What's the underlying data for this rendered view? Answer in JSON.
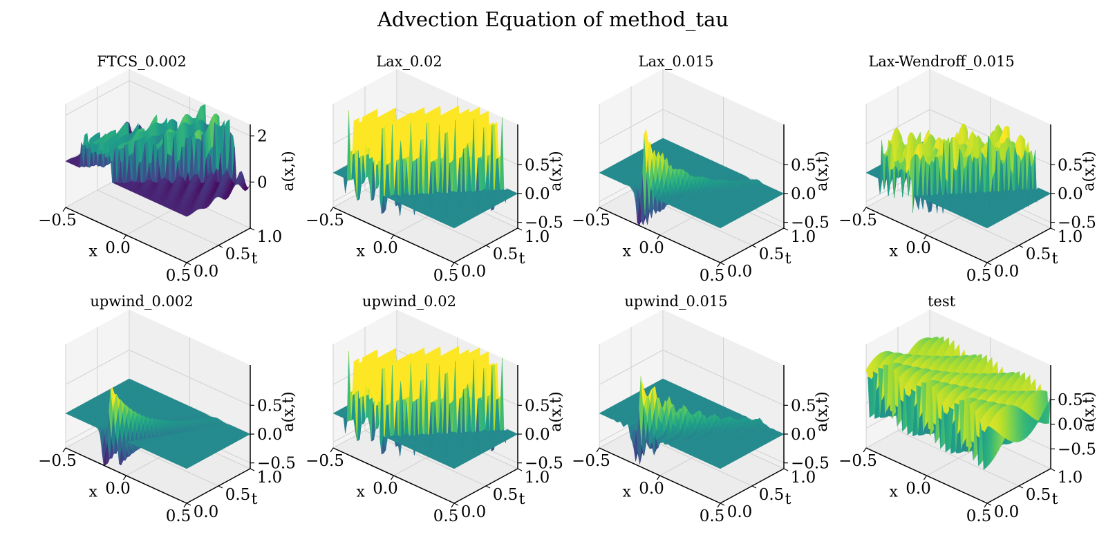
{
  "figure": {
    "title": "Advection Equation of method_tau"
  },
  "chart_data": [
    {
      "type": "surface3d",
      "title": "FTCS_0.002",
      "xlabel": "x",
      "ylabel": "t",
      "zlabel": "a(x,t)",
      "xlim": [
        -0.5,
        0.5
      ],
      "ylim": [
        0.0,
        1.0
      ],
      "zlim": [
        -2.0,
        2.5
      ],
      "x_ticks": [
        "−0.5",
        "0.0",
        "0.5"
      ],
      "y_ticks": [
        "0.0",
        "0.5",
        "1.0"
      ],
      "z_ticks": [
        {
          "v": 0,
          "label": "0"
        },
        {
          "v": 2,
          "label": "2"
        }
      ],
      "pattern": "ftcs",
      "colormap": "viridis"
    },
    {
      "type": "surface3d",
      "title": "Lax_0.02",
      "xlabel": "x",
      "ylabel": "t",
      "zlabel": "a(x,t)",
      "xlim": [
        -0.5,
        0.5
      ],
      "ylim": [
        0.0,
        1.0
      ],
      "zlim": [
        -0.6,
        1.2
      ],
      "x_ticks": [
        "−0.5",
        "0.0",
        "0.5"
      ],
      "y_ticks": [
        "0.0",
        "0.5",
        "1.0"
      ],
      "z_ticks": [
        {
          "v": -0.5,
          "label": "−0.5"
        },
        {
          "v": 0.0,
          "label": "0.0"
        },
        {
          "v": 0.5,
          "label": "0.5"
        }
      ],
      "pattern": "square",
      "colormap": "viridis"
    },
    {
      "type": "surface3d",
      "title": "Lax_0.015",
      "xlabel": "x",
      "ylabel": "t",
      "zlabel": "a(x,t)",
      "xlim": [
        -0.5,
        0.5
      ],
      "ylim": [
        0.0,
        1.0
      ],
      "zlim": [
        -0.6,
        1.2
      ],
      "x_ticks": [
        "−0.5",
        "0.0",
        "0.5"
      ],
      "y_ticks": [
        "0.0",
        "0.5",
        "1.0"
      ],
      "z_ticks": [
        {
          "v": -0.5,
          "label": "−0.5"
        },
        {
          "v": 0.0,
          "label": "0.0"
        },
        {
          "v": 0.5,
          "label": "0.5"
        }
      ],
      "pattern": "spike",
      "colormap": "viridis"
    },
    {
      "type": "surface3d",
      "title": "Lax-Wendroff_0.015",
      "xlabel": "x",
      "ylabel": "t",
      "zlabel": "a(x,t)",
      "xlim": [
        -0.5,
        0.5
      ],
      "ylim": [
        0.0,
        1.0
      ],
      "zlim": [
        -0.6,
        1.2
      ],
      "x_ticks": [
        "−0.5",
        "0.0",
        "0.5"
      ],
      "y_ticks": [
        "0.0",
        "0.5",
        "1.0"
      ],
      "z_ticks": [
        {
          "v": -0.5,
          "label": "−0.5"
        },
        {
          "v": 0.0,
          "label": "0.0"
        },
        {
          "v": 0.5,
          "label": "0.5"
        }
      ],
      "pattern": "squareNoisy",
      "colormap": "viridis"
    },
    {
      "type": "surface3d",
      "title": "upwind_0.002",
      "xlabel": "x",
      "ylabel": "t",
      "zlabel": "a(x,t)",
      "xlim": [
        -0.5,
        0.5
      ],
      "ylim": [
        0.0,
        1.0
      ],
      "zlim": [
        -0.6,
        1.2
      ],
      "x_ticks": [
        "−0.5",
        "0.0",
        "0.5"
      ],
      "y_ticks": [
        "0.0",
        "0.5",
        "1.0"
      ],
      "z_ticks": [
        {
          "v": -0.5,
          "label": "−0.5"
        },
        {
          "v": 0.0,
          "label": "0.0"
        },
        {
          "v": 0.5,
          "label": "0.5"
        }
      ],
      "pattern": "spikeSmall",
      "colormap": "viridis"
    },
    {
      "type": "surface3d",
      "title": "upwind_0.02",
      "xlabel": "x",
      "ylabel": "t",
      "zlabel": "a(x,t)",
      "xlim": [
        -0.5,
        0.5
      ],
      "ylim": [
        0.0,
        1.0
      ],
      "zlim": [
        -0.6,
        1.2
      ],
      "x_ticks": [
        "−0.5",
        "0.0",
        "0.5"
      ],
      "y_ticks": [
        "0.0",
        "0.5",
        "1.0"
      ],
      "z_ticks": [
        {
          "v": -0.5,
          "label": "−0.5"
        },
        {
          "v": 0.0,
          "label": "0.0"
        },
        {
          "v": 0.5,
          "label": "0.5"
        }
      ],
      "pattern": "square",
      "colormap": "viridis"
    },
    {
      "type": "surface3d",
      "title": "upwind_0.015",
      "xlabel": "x",
      "ylabel": "t",
      "zlabel": "a(x,t)",
      "xlim": [
        -0.5,
        0.5
      ],
      "ylim": [
        0.0,
        1.0
      ],
      "zlim": [
        -0.6,
        1.2
      ],
      "x_ticks": [
        "−0.5",
        "0.0",
        "0.5"
      ],
      "y_ticks": [
        "0.0",
        "0.5",
        "1.0"
      ],
      "z_ticks": [
        {
          "v": -0.5,
          "label": "−0.5"
        },
        {
          "v": 0.0,
          "label": "0.0"
        },
        {
          "v": 0.5,
          "label": "0.5"
        }
      ],
      "pattern": "spikeWave",
      "colormap": "viridis"
    },
    {
      "type": "surface3d",
      "title": "test",
      "xlabel": "x",
      "ylabel": "t",
      "zlabel": "a(x,t)",
      "xlim": [
        -0.5,
        0.5
      ],
      "ylim": [
        0.0,
        1.0
      ],
      "zlim": [
        -0.9,
        1.2
      ],
      "x_ticks": [
        "−0.5",
        "0.0",
        "0.5"
      ],
      "y_ticks": [
        "0.0",
        "0.5",
        "1.0"
      ],
      "z_ticks": [
        {
          "v": -0.5,
          "label": "−0.5"
        },
        {
          "v": 0.0,
          "label": "0.0"
        },
        {
          "v": 0.5,
          "label": "0.5"
        }
      ],
      "pattern": "full",
      "colormap": "viridis"
    }
  ]
}
